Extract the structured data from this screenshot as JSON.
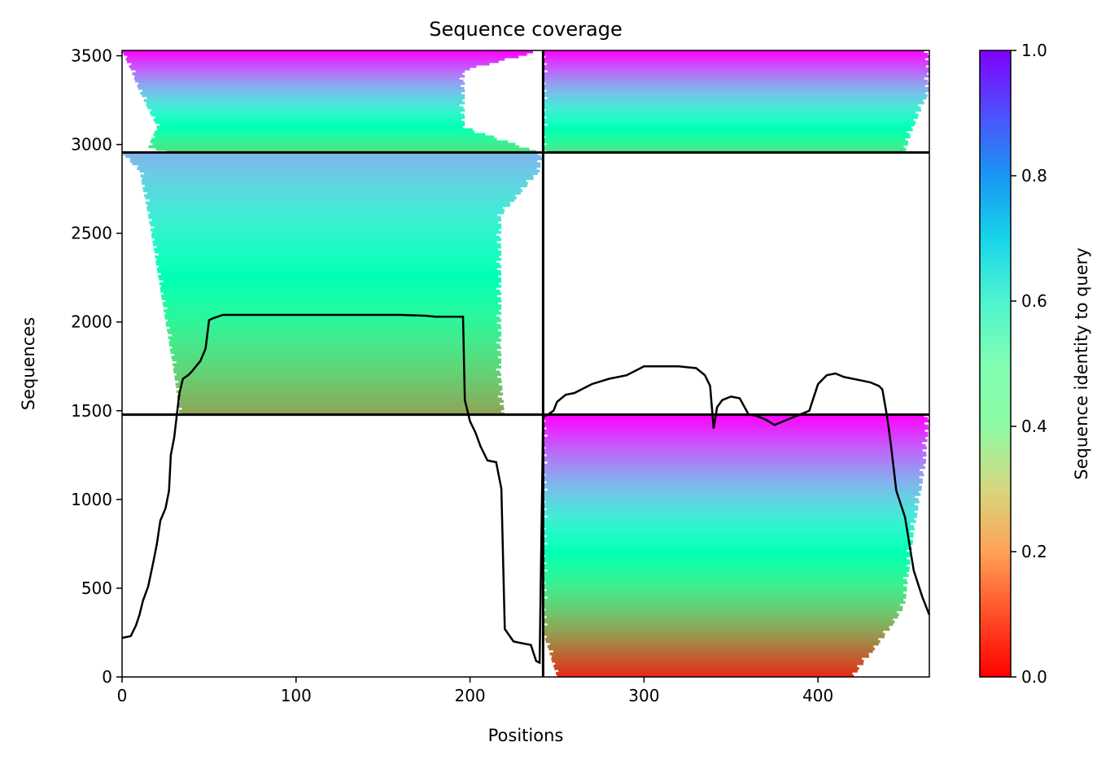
{
  "chart_data": {
    "type": "heatmap",
    "title": "Sequence coverage",
    "xlabel": "Positions",
    "ylabel": "Sequences",
    "xlim": [
      0,
      464
    ],
    "ylim": [
      0,
      3530
    ],
    "x_ticks": [
      0,
      100,
      200,
      300,
      400
    ],
    "y_ticks": [
      0,
      500,
      1000,
      1500,
      2000,
      2500,
      3000,
      3500
    ],
    "colorbar": {
      "label": "Sequence identity to query",
      "range": [
        0,
        1
      ],
      "ticks": [
        "0.0",
        "0.2",
        "0.4",
        "0.6",
        "0.8",
        "1.0"
      ],
      "colormap": "rainbow"
    },
    "separators": {
      "vertical_x": 242,
      "horizontal_segments": [
        {
          "y": 2955,
          "x_from": 0,
          "x_to": 464
        },
        {
          "y": 1478,
          "x_from": 0,
          "x_to": 464
        },
        {
          "y": 3530,
          "x_from": 242,
          "x_to": 242
        }
      ]
    },
    "blocks": [
      {
        "name": "block-top-left",
        "x_range": [
          0,
          242
        ],
        "y_range": [
          2955,
          3530
        ],
        "identity_top": 1.0,
        "identity_bottom": 0.33,
        "coverage": [
          [
            3530,
            0,
            242
          ],
          [
            3420,
            5,
            197
          ],
          [
            3300,
            10,
            197
          ],
          [
            3100,
            20,
            197
          ],
          [
            2990,
            15,
            230
          ],
          [
            2955,
            25,
            240
          ]
        ]
      },
      {
        "name": "block-top-right",
        "x_range": [
          242,
          464
        ],
        "y_range": [
          2955,
          3530
        ],
        "identity_top": 1.0,
        "identity_bottom": 0.35,
        "coverage": [
          [
            3530,
            242,
            464
          ],
          [
            3300,
            242,
            464
          ],
          [
            3100,
            242,
            455
          ],
          [
            2955,
            242,
            450
          ]
        ]
      },
      {
        "name": "block-middle-left",
        "x_range": [
          0,
          242
        ],
        "y_range": [
          1478,
          2955
        ],
        "identity_top": 0.75,
        "identity_bottom": 0.22,
        "coverage": [
          [
            2955,
            0,
            242
          ],
          [
            2850,
            10,
            240
          ],
          [
            2600,
            15,
            218
          ],
          [
            2300,
            20,
            218
          ],
          [
            2000,
            25,
            218
          ],
          [
            1700,
            30,
            218
          ],
          [
            1478,
            33,
            220
          ]
        ]
      },
      {
        "name": "block-bottom-right",
        "x_range": [
          242,
          464
        ],
        "y_range": [
          0,
          1478
        ],
        "identity_top": 1.0,
        "identity_bottom": 0.05,
        "coverage": [
          [
            1478,
            242,
            464
          ],
          [
            1200,
            242,
            462
          ],
          [
            800,
            242,
            455
          ],
          [
            400,
            242,
            450
          ],
          [
            250,
            242,
            440
          ],
          [
            0,
            250,
            420
          ]
        ]
      }
    ],
    "series": [
      {
        "type": "line",
        "color": "#000000",
        "x": [
          0,
          5,
          8,
          10,
          12,
          15,
          18,
          20,
          22,
          25,
          27,
          28,
          30,
          32,
          33,
          35,
          38,
          40,
          45,
          48,
          50,
          52,
          55,
          58,
          60,
          65,
          70,
          80,
          90,
          100,
          120,
          140,
          160,
          175,
          180,
          185,
          190,
          196,
          197,
          200,
          203,
          206,
          210,
          215,
          218,
          220,
          225,
          230,
          235,
          238,
          240,
          242,
          243,
          245,
          248,
          250,
          255,
          260,
          270,
          280,
          290,
          300,
          310,
          320,
          330,
          335,
          338,
          340,
          342,
          345,
          350,
          355,
          360,
          365,
          370,
          375,
          380,
          385,
          390,
          395,
          400,
          405,
          410,
          415,
          420,
          425,
          430,
          435,
          437,
          440,
          442,
          445,
          450,
          455,
          460,
          464
        ],
        "y": [
          220,
          230,
          290,
          350,
          430,
          510,
          650,
          750,
          880,
          950,
          1050,
          1250,
          1350,
          1520,
          1600,
          1680,
          1700,
          1720,
          1780,
          1850,
          2010,
          2020,
          2030,
          2040,
          2040,
          2040,
          2040,
          2040,
          2040,
          2040,
          2040,
          2040,
          2040,
          2035,
          2030,
          2030,
          2030,
          2030,
          1560,
          1440,
          1380,
          1300,
          1220,
          1210,
          1060,
          270,
          200,
          190,
          180,
          90,
          80,
          1460,
          1470,
          1480,
          1500,
          1550,
          1590,
          1600,
          1650,
          1680,
          1700,
          1750,
          1750,
          1750,
          1740,
          1700,
          1640,
          1400,
          1520,
          1560,
          1580,
          1570,
          1480,
          1470,
          1450,
          1420,
          1440,
          1460,
          1480,
          1500,
          1650,
          1700,
          1710,
          1690,
          1680,
          1670,
          1660,
          1640,
          1620,
          1450,
          1300,
          1050,
          900,
          600,
          450,
          350
        ]
      }
    ]
  }
}
